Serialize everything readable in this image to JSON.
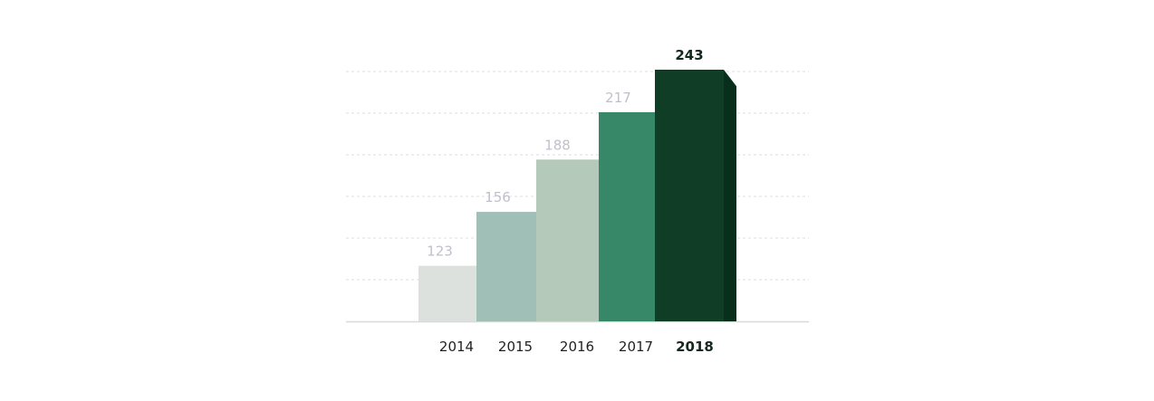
{
  "chart_data": {
    "type": "bar",
    "categories": [
      "2014",
      "2015",
      "2016",
      "2017",
      "2018"
    ],
    "values": [
      123,
      156,
      188,
      217,
      243
    ],
    "data_labels": [
      "123",
      "156",
      "188",
      "217",
      "243"
    ],
    "highlight_category": "2018",
    "grid": true,
    "legend": "none",
    "title": "",
    "xlabel": "",
    "ylabel": "",
    "colors": {
      "front": [
        "#dde1de",
        "#a0bfb6",
        "#b4c9b9",
        "#378868",
        "#0f3d26"
      ],
      "side": [
        "#c7cac7",
        "#82a398",
        "#97a89a",
        "#07804a",
        "#082f1c"
      ],
      "label": [
        "#c0c0cc",
        "#c0c0cc",
        "#c0c0cc",
        "#c0c0cc",
        "#14281d"
      ],
      "grid": "#dddddd",
      "axis": "#d8d8de"
    }
  }
}
